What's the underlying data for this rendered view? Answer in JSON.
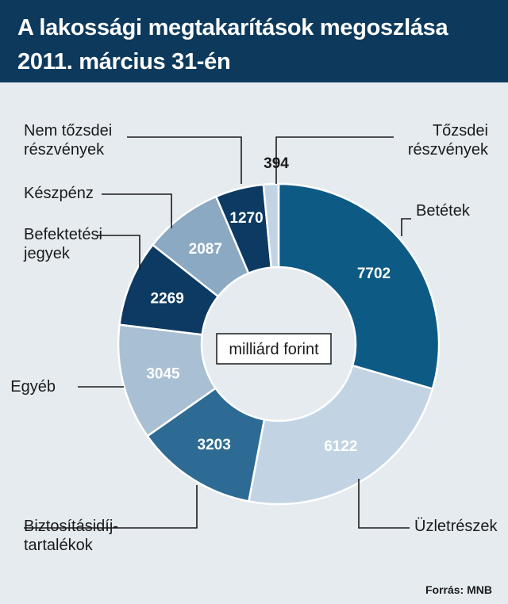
{
  "header": {
    "title_line1": "A lakossági megtakarítások megoszlása",
    "title_line2": "2011. március 31-én"
  },
  "source": "Forrás: MNB",
  "unit_label": "milliárd forint",
  "chart_data": {
    "type": "pie",
    "title": "A lakossági megtakarítások megoszlása 2011. március 31-én",
    "unit": "milliárd forint",
    "donut": true,
    "slices": [
      {
        "id": "betetek",
        "label_lines": [
          "Betétek"
        ],
        "value": 7702,
        "display": "7702",
        "color": "#0d5a85",
        "text_color": "#ffffff"
      },
      {
        "id": "uzletreszek",
        "label_lines": [
          "Üzletrészek"
        ],
        "value": 6122,
        "display": "6122",
        "color": "#c2d4e4",
        "text_color": "#ffffff"
      },
      {
        "id": "biztositas",
        "label_lines": [
          "Biztosításidíj-",
          "tartalékok"
        ],
        "value": 3203,
        "display": "3203",
        "color": "#2d6b94",
        "text_color": "#ffffff"
      },
      {
        "id": "egyeb",
        "label_lines": [
          "Egyéb"
        ],
        "value": 3045,
        "display": "3045",
        "color": "#a9bfd3",
        "text_color": "#ffffff"
      },
      {
        "id": "befektetesi",
        "label_lines": [
          "Befektetési",
          "jegyek"
        ],
        "value": 2269,
        "display": "2269",
        "color": "#0c3a62",
        "text_color": "#ffffff"
      },
      {
        "id": "keszpenz",
        "label_lines": [
          "Készpénz"
        ],
        "value": 2087,
        "display": "2087",
        "color": "#8ba9c3",
        "text_color": "#ffffff"
      },
      {
        "id": "nemtozsdei",
        "label_lines": [
          "Nem tőzsdei",
          "részvények"
        ],
        "value": 1270,
        "display": "1270",
        "color": "#0c3a62",
        "text_color": "#ffffff"
      },
      {
        "id": "tozsdei",
        "label_lines": [
          "Tőzsdei",
          "részvények"
        ],
        "value": 394,
        "display": "394",
        "color": "#c2d4e4",
        "text_color": "#1b1b1b"
      }
    ]
  }
}
